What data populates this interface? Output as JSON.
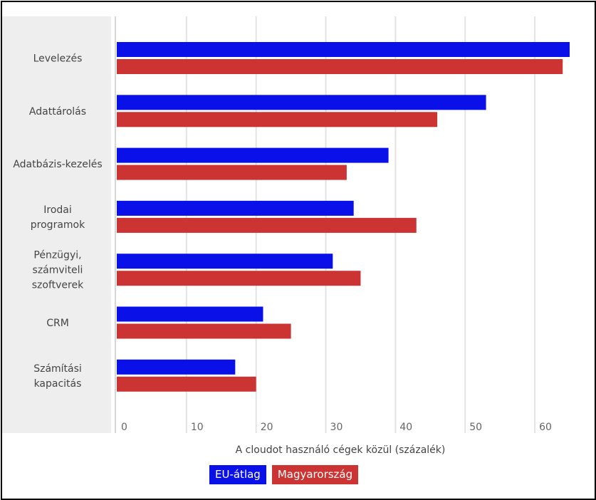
{
  "chart_data": {
    "type": "bar",
    "orientation": "horizontal",
    "categories": [
      [
        "Levelezés"
      ],
      [
        "Adattárolás"
      ],
      [
        "Adatbázis-kezelés"
      ],
      [
        "Irodai",
        "programok"
      ],
      [
        "Pénzügyi,",
        "számviteli",
        "szoftverek"
      ],
      [
        "CRM"
      ],
      [
        "Számítási",
        "kapacitás"
      ]
    ],
    "series": [
      {
        "name": "EU-átlag",
        "color": "#0a10e8",
        "values": [
          65,
          53,
          39,
          34,
          31,
          21,
          17
        ]
      },
      {
        "name": "Magyarország",
        "color": "#cc3333",
        "values": [
          64,
          46,
          33,
          43,
          35,
          25,
          20
        ]
      }
    ],
    "xticks": [
      "0",
      "10",
      "20",
      "30",
      "40",
      "50",
      "60"
    ],
    "xlim": [
      0,
      65
    ],
    "xlabel": "A cloudot használó cégek közül (százalék)",
    "grid": true,
    "legend_position": "bottom"
  }
}
